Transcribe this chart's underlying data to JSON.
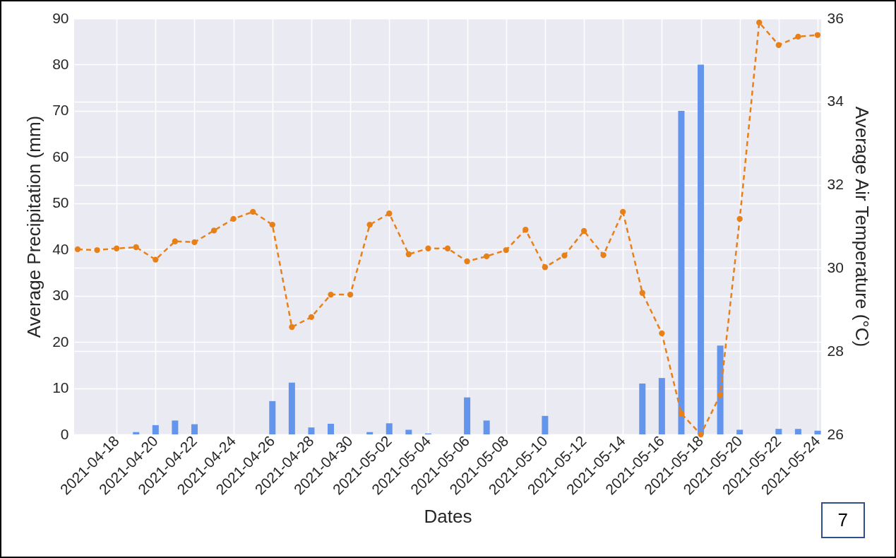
{
  "chart_data": {
    "type": "bar",
    "xlabel": "Dates",
    "ylabel": "Average Precipitation (mm)",
    "y2label": "Average Air Temperature (°C)",
    "x": [
      "2021-04-16",
      "2021-04-17",
      "2021-04-18",
      "2021-04-19",
      "2021-04-20",
      "2021-04-21",
      "2021-04-22",
      "2021-04-23",
      "2021-04-24",
      "2021-04-25",
      "2021-04-26",
      "2021-04-27",
      "2021-04-28",
      "2021-04-29",
      "2021-04-30",
      "2021-05-01",
      "2021-05-02",
      "2021-05-03",
      "2021-05-04",
      "2021-05-05",
      "2021-05-06",
      "2021-05-07",
      "2021-05-08",
      "2021-05-09",
      "2021-05-10",
      "2021-05-11",
      "2021-05-12",
      "2021-05-13",
      "2021-05-14",
      "2021-05-15",
      "2021-05-16",
      "2021-05-17",
      "2021-05-18",
      "2021-05-19",
      "2021-05-20",
      "2021-05-21",
      "2021-05-22",
      "2021-05-23",
      "2021-05-24"
    ],
    "series": [
      {
        "color": "#6495ed",
        "values": [
          0,
          0,
          0,
          0.5,
          2,
          3,
          2.2,
          0,
          0,
          0,
          7.2,
          11.2,
          1.5,
          2.3,
          0,
          0.5,
          2.4,
          1,
          0.2,
          0,
          8,
          3,
          0,
          0,
          4,
          0,
          0,
          0,
          0,
          11,
          12.2,
          70,
          80,
          19.2,
          1,
          0,
          1.2,
          1.2,
          0.8
        ]
      },
      {
        "type": "line",
        "axis": "y2",
        "color": "#e8801a",
        "values": [
          30.45,
          30.43,
          30.47,
          30.5,
          30.2,
          30.64,
          30.62,
          30.9,
          31.18,
          31.35,
          31.04,
          28.58,
          28.82,
          29.36,
          29.36,
          31.04,
          31.31,
          30.33,
          30.47,
          30.47,
          30.16,
          30.28,
          30.43,
          30.92,
          30.02,
          30.3,
          30.89,
          30.31,
          31.35,
          29.4,
          28.43,
          26.5,
          26.0,
          26.95,
          31.18,
          35.9,
          35.36,
          35.56,
          35.6
        ]
      }
    ],
    "xlim": [
      "2021-04-16",
      "2021-05-24"
    ],
    "xticks": [
      "2021-04-18",
      "2021-04-20",
      "2021-04-22",
      "2021-04-24",
      "2021-04-26",
      "2021-04-28",
      "2021-04-30",
      "2021-05-02",
      "2021-05-04",
      "2021-05-06",
      "2021-05-08",
      "2021-05-10",
      "2021-05-12",
      "2021-05-14",
      "2021-05-16",
      "2021-05-18",
      "2021-05-20",
      "2021-05-22",
      "2021-05-24"
    ],
    "ylim": [
      0,
      90
    ],
    "yticks": [
      0,
      10,
      20,
      30,
      40,
      50,
      60,
      70,
      80,
      90
    ],
    "y2lim": [
      26,
      36
    ],
    "y2ticks": [
      26,
      28,
      30,
      32,
      34,
      36
    ],
    "grid": true,
    "marker": "circle",
    "line_style": "dashed",
    "annotations": [
      "7"
    ]
  }
}
